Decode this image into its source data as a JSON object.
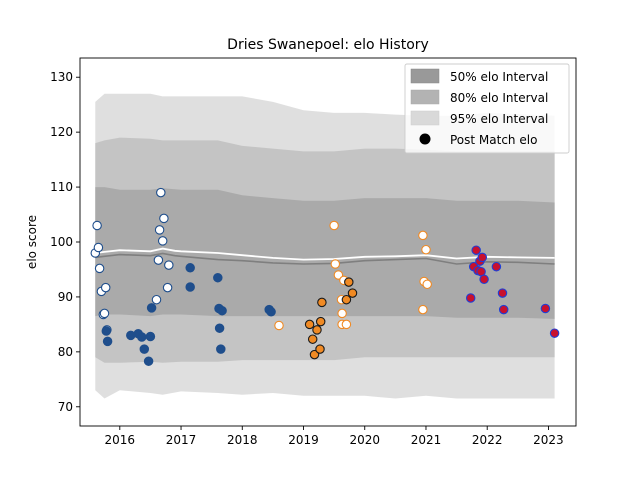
{
  "chart_data": {
    "type": "scatter",
    "title": "Dries Swanepoel: elo History",
    "xlabel": "",
    "ylabel": "elo score",
    "xlim": [
      2015.35,
      2023.45
    ],
    "ylim": [
      66.5,
      133.5
    ],
    "xticks": [
      2016,
      2017,
      2018,
      2019,
      2020,
      2021,
      2022,
      2023
    ],
    "yticks": [
      70,
      80,
      90,
      100,
      110,
      120,
      130
    ],
    "grid": false,
    "legend_position": "top-right",
    "legend": [
      {
        "label": "50% elo Interval",
        "kind": "band",
        "color": "#999999"
      },
      {
        "label": "80% elo Interval",
        "kind": "band",
        "color": "#b3b3b3"
      },
      {
        "label": "95% elo Interval",
        "kind": "band",
        "color": "#d9d9d9"
      },
      {
        "label": "Post Match elo",
        "kind": "marker",
        "color": "#000000"
      }
    ],
    "intervals": {
      "x": [
        2015.6,
        2015.75,
        2016.0,
        2016.5,
        2016.7,
        2017.0,
        2017.6,
        2018.0,
        2018.5,
        2019.0,
        2019.5,
        2020.0,
        2020.5,
        2021.0,
        2021.5,
        2022.0,
        2022.5,
        2023.1
      ],
      "band95": {
        "low": [
          73,
          71.5,
          73,
          72.5,
          72.2,
          72.8,
          72.5,
          72.2,
          72.5,
          72,
          72,
          72,
          71.5,
          72,
          71.5,
          71.5,
          71.5,
          71.5
        ],
        "high": [
          125.5,
          127,
          127,
          127,
          126.5,
          126.5,
          126.5,
          126.5,
          125.5,
          124,
          123.5,
          123.5,
          123.2,
          123,
          123,
          123.5,
          123.3,
          123
        ]
      },
      "band80": {
        "low": [
          79,
          78,
          78,
          78.2,
          78,
          78.2,
          78.2,
          78.5,
          78.5,
          78.5,
          78.5,
          79,
          79,
          79,
          79,
          79,
          79,
          79
        ],
        "high": [
          118,
          118.5,
          119,
          118.8,
          118.5,
          118.5,
          118.5,
          117.5,
          117,
          116.5,
          116.5,
          117,
          117,
          116.8,
          116.5,
          116.5,
          116.5,
          116.5
        ]
      },
      "band50": {
        "low": [
          86.5,
          86.8,
          86.8,
          86.5,
          86.8,
          86.8,
          86.5,
          86.5,
          86.5,
          86.5,
          86.5,
          86.5,
          86.5,
          86.5,
          86.2,
          86.2,
          86.2,
          86
        ],
        "high": [
          110,
          110,
          109.5,
          109.5,
          109.8,
          109.5,
          109.5,
          108.5,
          108,
          107.5,
          107.5,
          108,
          108,
          108,
          107.5,
          107.5,
          107.5,
          107.2
        ]
      }
    },
    "mean_line": {
      "x": [
        2015.6,
        2015.75,
        2016.0,
        2016.5,
        2016.7,
        2016.9,
        2017.0,
        2017.6,
        2018.0,
        2018.5,
        2019.0,
        2019.5,
        2020.0,
        2020.5,
        2021.0,
        2021.5,
        2022.0,
        2022.5,
        2023.1
      ],
      "white": [
        98,
        98.2,
        98.5,
        98.3,
        98.8,
        98.4,
        98.3,
        98.0,
        97.6,
        97.1,
        96.8,
        96.9,
        97.3,
        97.4,
        97.6,
        97.0,
        97.3,
        97.2,
        97.1
      ],
      "gray": [
        97.2,
        97.4,
        97.7,
        97.5,
        97.9,
        97.5,
        97.4,
        96.8,
        96.6,
        96.2,
        96.0,
        96.1,
        96.6,
        96.8,
        97.0,
        96.0,
        96.4,
        96.3,
        96.0
      ]
    },
    "series": [
      {
        "name": "",
        "marker": "white",
        "edge": "#1f4e8c",
        "face": "#ffffff",
        "x": [
          2015.6,
          2015.63,
          2015.65,
          2015.67,
          2015.7,
          2015.73,
          2015.75,
          2015.77,
          2015.79,
          2016.67,
          2016.72,
          2016.65,
          2016.7,
          2016.8,
          2016.6,
          2016.63,
          2016.78
        ],
        "y": [
          98,
          103,
          99,
          95.2,
          91,
          86.8,
          87,
          91.7,
          84,
          109,
          104.3,
          102.2,
          100.2,
          95.8,
          89.5,
          96.7,
          91.7
        ]
      },
      {
        "name": "",
        "marker": "blue",
        "edge": "#1f4e8c",
        "face": "#1f4e8c",
        "x": [
          2015.78,
          2015.8,
          2016.18,
          2016.3,
          2016.36,
          2016.4,
          2016.47,
          2016.5,
          2016.52,
          2017.15,
          2017.15,
          2017.6,
          2017.62,
          2017.63,
          2017.65,
          2017.67,
          2018.44,
          2018.47
        ],
        "y": [
          83.8,
          81.9,
          83,
          83.3,
          82.7,
          80.5,
          78.3,
          82.8,
          88,
          95.3,
          91.8,
          93.5,
          87.9,
          84.3,
          80.5,
          87.5,
          87.7,
          87.3
        ]
      },
      {
        "name": "",
        "marker": "white-orange",
        "edge": "#f08a24",
        "face": "#ffffff",
        "x": [
          2018.6,
          2019.5,
          2019.52,
          2019.57,
          2019.62,
          2019.63,
          2019.66,
          2019.63,
          2019.7,
          2020.95,
          2021.0,
          2020.97,
          2021.02,
          2020.95
        ],
        "y": [
          84.8,
          103,
          96,
          94,
          89.5,
          87,
          93,
          85,
          85,
          101.2,
          98.6,
          92.8,
          92.3,
          87.7
        ]
      },
      {
        "name": "",
        "marker": "orange",
        "edge": "#1a1a1a",
        "face": "#f08a24",
        "x": [
          2019.1,
          2019.15,
          2019.18,
          2019.22,
          2019.28,
          2019.27,
          2019.3,
          2019.7,
          2019.74,
          2019.8
        ],
        "y": [
          85,
          82.3,
          79.5,
          84,
          85.5,
          80.5,
          89,
          89.5,
          92.7,
          90.7
        ]
      },
      {
        "name": "",
        "marker": "red-blue",
        "edge": "#1f3fd6",
        "face": "#c8102e",
        "x": [
          2021.73,
          2021.78,
          2021.82,
          2021.85,
          2021.88,
          2021.9,
          2021.92,
          2021.95,
          2022.15,
          2022.25,
          2022.27,
          2022.95,
          2023.1
        ],
        "y": [
          89.8,
          95.5,
          98.5,
          94.8,
          96.5,
          94.6,
          97.2,
          93.2,
          95.5,
          90.7,
          87.7,
          87.9,
          83.4
        ]
      }
    ]
  }
}
